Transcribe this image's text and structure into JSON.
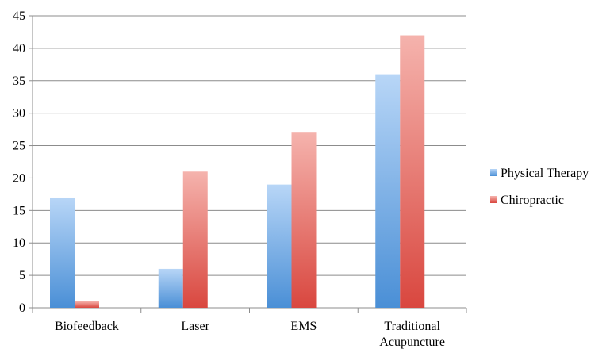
{
  "chart_data": {
    "type": "bar",
    "categories": [
      [
        "Biofeedback"
      ],
      [
        "Laser"
      ],
      [
        "EMS"
      ],
      [
        "Traditional",
        "Acupuncture"
      ]
    ],
    "series": [
      {
        "name": "Physical Therapy",
        "values": [
          17,
          6,
          19,
          36
        ],
        "color": "#5b9bd5"
      },
      {
        "name": "Chiropractic",
        "values": [
          1,
          21,
          27,
          42
        ],
        "color": "#e05a52"
      }
    ],
    "ylim": [
      0,
      45
    ],
    "yticks": [
      "0",
      "5",
      "10",
      "15",
      "20",
      "25",
      "30",
      "35",
      "40",
      "45"
    ],
    "grid": true,
    "legend": "right",
    "title": "",
    "xlabel": "",
    "ylabel": ""
  }
}
